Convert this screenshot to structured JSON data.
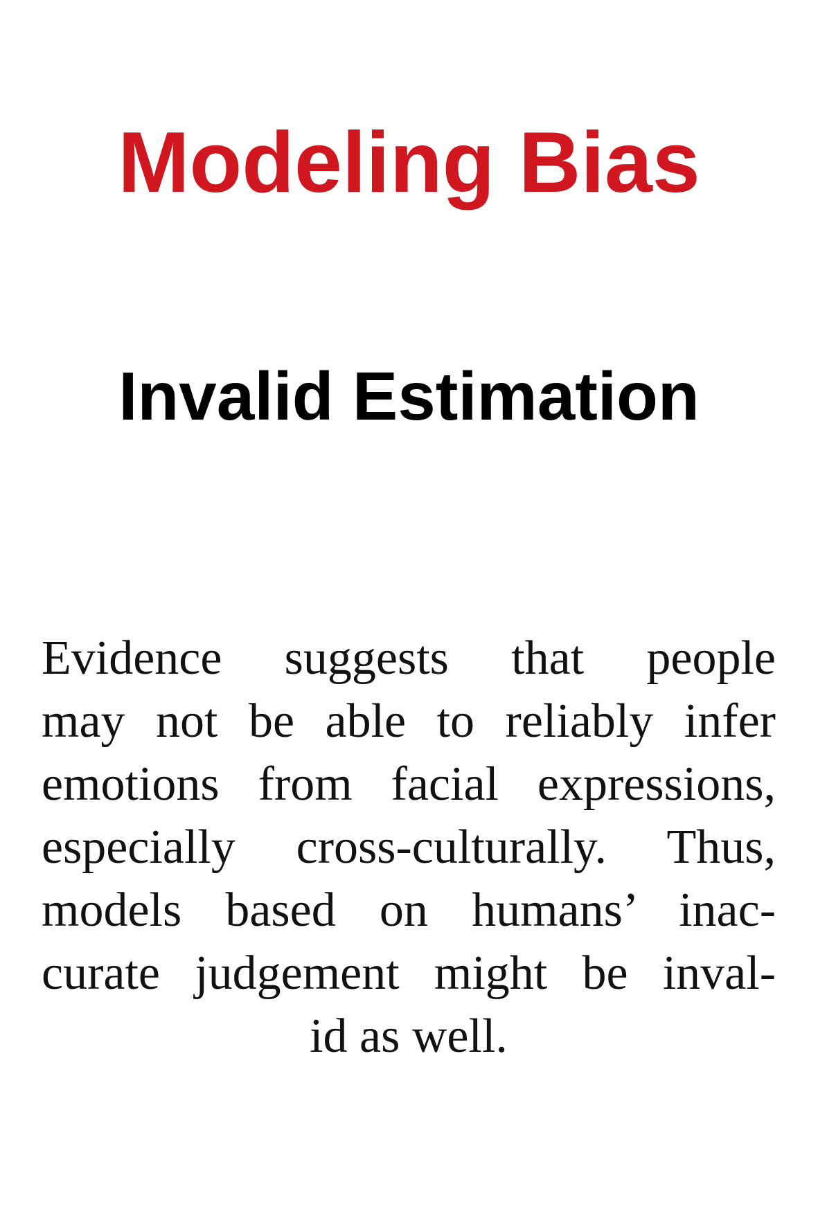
{
  "title": "Modeling Bias",
  "subtitle": "Invalid Estimation",
  "body_lines": [
    "Evidence suggests that people",
    "may not be able to reliably infer",
    "emotions from facial expressions,",
    "especially cross-culturally. Thus,",
    "models based on humans’ inac-",
    "curate judgement might be inval-",
    "id as well."
  ],
  "colors": {
    "title": "#d0161f",
    "subtitle": "#000000",
    "body": "#111111",
    "background": "#ffffff"
  }
}
